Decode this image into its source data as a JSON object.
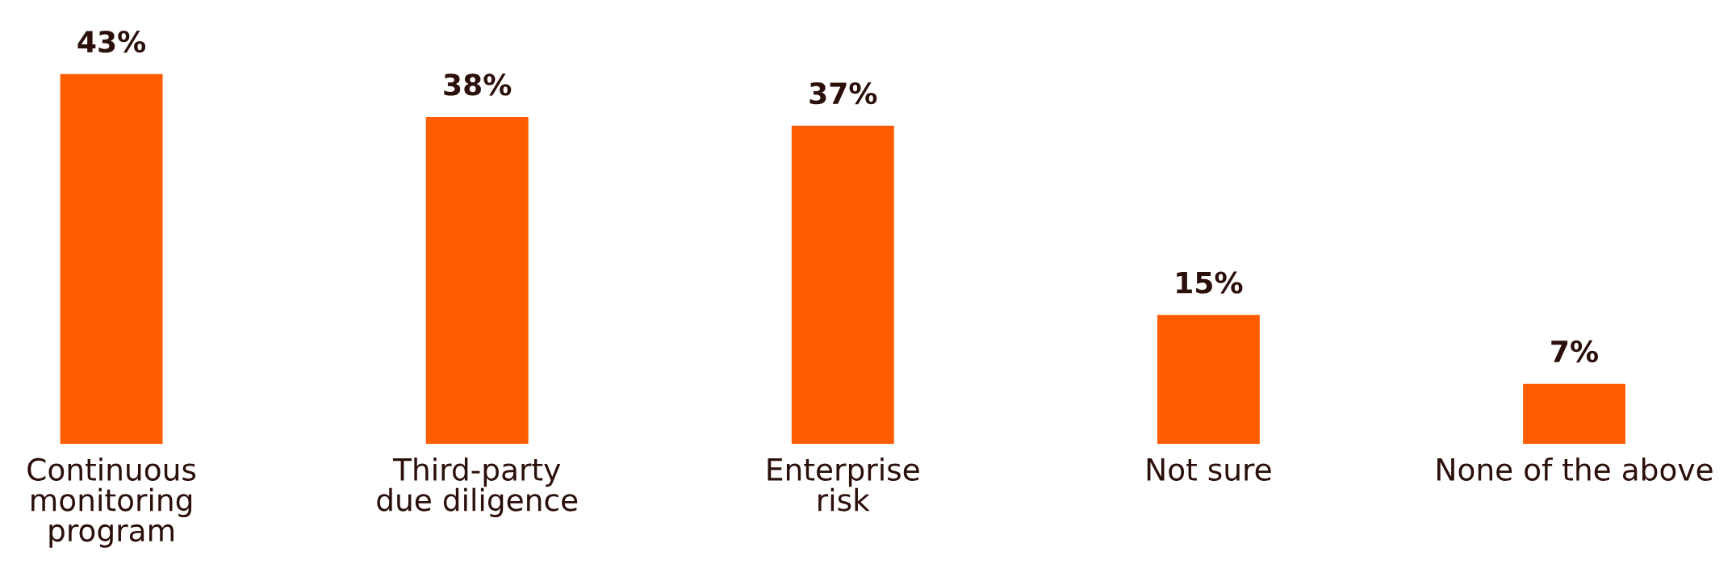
{
  "chart_data": {
    "type": "bar",
    "categories": [
      "Continuous\nmonitoring\nprogram",
      "Third-party\ndue diligence",
      "Enterprise\nrisk",
      "Not sure",
      "None of the above"
    ],
    "values": [
      43,
      38,
      37,
      15,
      7
    ],
    "color": "#ff5c00",
    "value_labels": [
      "43%",
      "38%",
      "37%",
      "15%",
      "7%"
    ],
    "grid": false,
    "legend": false
  }
}
